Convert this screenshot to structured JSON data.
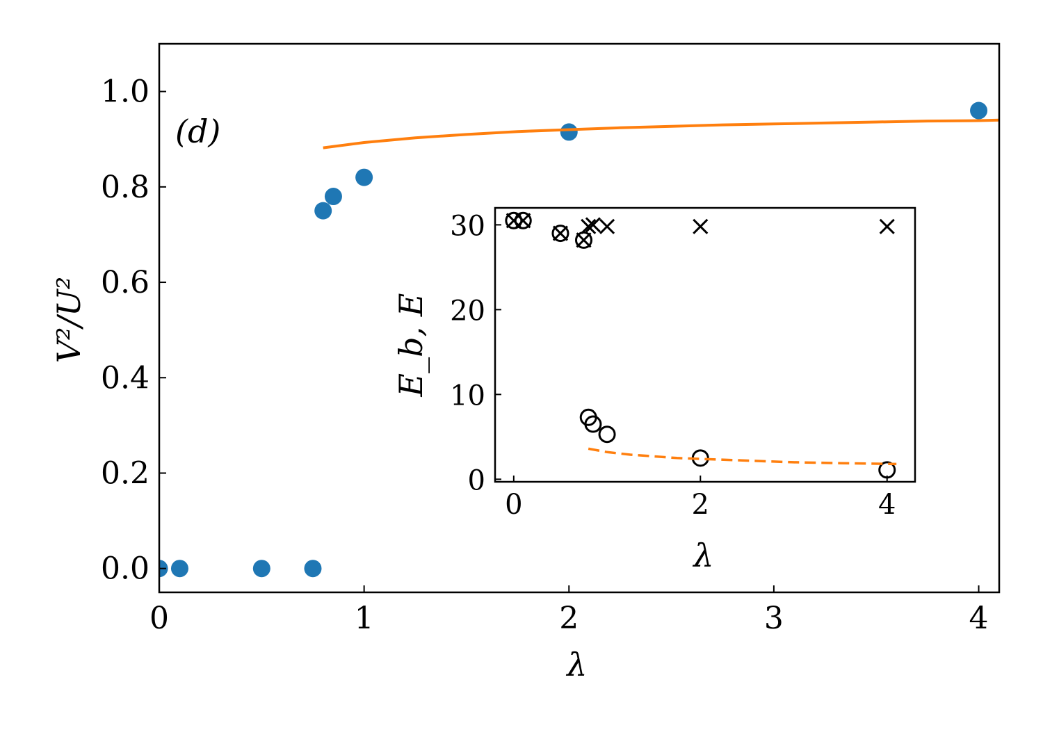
{
  "chart_data": [
    {
      "type": "scatter",
      "panel_label": "(d)",
      "xlabel": "λ",
      "ylabel": "V²/U²",
      "xlim": [
        0,
        4.1
      ],
      "ylim": [
        -0.05,
        1.1
      ],
      "x_ticks": [
        0,
        1,
        2,
        3,
        4
      ],
      "x_tick_labels": [
        "0",
        "1",
        "2",
        "3",
        "4"
      ],
      "y_ticks": [
        0.0,
        0.2,
        0.4,
        0.6,
        0.8,
        1.0
      ],
      "y_tick_labels": [
        "0.0",
        "0.2",
        "0.4",
        "0.6",
        "0.8",
        "1.0"
      ],
      "grid": false,
      "legend": "none",
      "series": [
        {
          "style": "markers",
          "color": "#1f77b4",
          "x": [
            0,
            0.1,
            0.5,
            0.75,
            0.8,
            0.85,
            1.0,
            2.0,
            4.0
          ],
          "y": [
            0.0,
            0.0,
            0.0,
            0.0,
            0.75,
            0.78,
            0.82,
            0.915,
            0.96
          ]
        },
        {
          "style": "line",
          "color": "#ff7f0e",
          "x": [
            0.8,
            1.0,
            1.25,
            1.5,
            1.75,
            2.0,
            2.25,
            2.5,
            2.75,
            3.0,
            3.25,
            3.5,
            3.75,
            4.0,
            4.1
          ],
          "y": [
            0.882,
            0.893,
            0.903,
            0.91,
            0.916,
            0.92,
            0.924,
            0.927,
            0.93,
            0.932,
            0.934,
            0.936,
            0.938,
            0.939,
            0.94
          ]
        }
      ]
    },
    {
      "type": "scatter",
      "position": "inset",
      "xlabel": "λ",
      "ylabel": "E_b,  E",
      "xlim": [
        -0.2,
        4.3
      ],
      "ylim": [
        -0.3,
        32
      ],
      "x_ticks": [
        0,
        2,
        4
      ],
      "x_tick_labels": [
        "0",
        "2",
        "4"
      ],
      "y_ticks": [
        0,
        10,
        20,
        30
      ],
      "y_tick_labels": [
        "0",
        "10",
        "20",
        "30"
      ],
      "grid": false,
      "legend": "none",
      "series": [
        {
          "style": "x-markers",
          "color": "#000000",
          "x": [
            0,
            0.1,
            0.5,
            0.75,
            0.8,
            0.85,
            1.0,
            2.0,
            4.0
          ],
          "y": [
            30.5,
            30.5,
            29.0,
            28.2,
            29.8,
            30.0,
            29.8,
            29.8,
            29.8
          ]
        },
        {
          "style": "open-circles",
          "color": "#000000",
          "x": [
            0,
            0.1,
            0.5,
            0.75,
            0.8,
            0.85,
            1.0,
            2.0,
            4.0
          ],
          "y": [
            30.5,
            30.5,
            29.0,
            28.2,
            7.3,
            6.5,
            5.3,
            2.5,
            1.1
          ]
        },
        {
          "style": "dashed-line",
          "color": "#ff7f0e",
          "x": [
            0.8,
            1.0,
            1.25,
            1.5,
            1.75,
            2.0,
            2.5,
            3.0,
            3.5,
            4.1
          ],
          "y": [
            3.6,
            3.2,
            2.9,
            2.7,
            2.5,
            2.4,
            2.2,
            2.0,
            1.9,
            1.8
          ]
        }
      ]
    }
  ]
}
